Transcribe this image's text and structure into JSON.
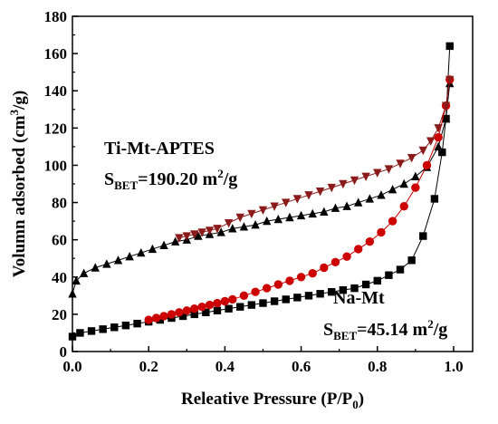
{
  "chart_data": {
    "type": "scatter",
    "xlabel": "Releative Pressure (P/P",
    "xlabel_sub": "0",
    "xlabel_close": ")",
    "ylabel": "Volumn adsorbed (cm",
    "ylabel_sup": "3",
    "ylabel_close": "/g)",
    "xlim": [
      0.0,
      1.05
    ],
    "ylim": [
      0,
      180
    ],
    "xticks": [
      0.0,
      0.2,
      0.4,
      0.6,
      0.8,
      1.0
    ],
    "xtick_labels": [
      "0.0",
      "0.2",
      "0.4",
      "0.6",
      "0.8",
      "1.0"
    ],
    "yticks": [
      0,
      20,
      40,
      60,
      80,
      100,
      120,
      140,
      160,
      180
    ],
    "ytick_labels": [
      "0",
      "20",
      "40",
      "60",
      "80",
      "100",
      "120",
      "140",
      "160",
      "180"
    ],
    "colors": {
      "black": "#000000",
      "red": "#cc0000",
      "brown": "#8b1a1a"
    },
    "annotations": {
      "ti_name": "Ti-Mt-APTES",
      "ti_s": "S",
      "ti_sub": "BET",
      "ti_value": "=190.20 m",
      "ti_sup": "2",
      "ti_unit": "/g",
      "na_name": "Na-Mt",
      "na_s": "S",
      "na_sub": "BET",
      "na_value": "=45.14 m",
      "na_sup": "2",
      "na_unit": "/g"
    },
    "series": [
      {
        "marker": "square",
        "color": "#000000",
        "x": [
          0.0,
          0.02,
          0.05,
          0.08,
          0.11,
          0.14,
          0.17,
          0.2,
          0.23,
          0.26,
          0.29,
          0.32,
          0.35,
          0.38,
          0.41,
          0.44,
          0.47,
          0.5,
          0.53,
          0.56,
          0.59,
          0.62,
          0.65,
          0.68,
          0.71,
          0.74,
          0.77,
          0.8,
          0.83,
          0.86,
          0.89,
          0.92,
          0.95,
          0.97,
          0.98,
          0.99
        ],
        "y": [
          8,
          10,
          11,
          12,
          13,
          14,
          15,
          16,
          17,
          18,
          19,
          20,
          21,
          22,
          23,
          24,
          25,
          26,
          27,
          28,
          29,
          30,
          31,
          32,
          33,
          34,
          36,
          38,
          41,
          44,
          49,
          62,
          82,
          107,
          125,
          164
        ]
      },
      {
        "marker": "triangle-up",
        "color": "#000000",
        "x": [
          0.0,
          0.01,
          0.03,
          0.06,
          0.09,
          0.12,
          0.15,
          0.18,
          0.21,
          0.24,
          0.27,
          0.3,
          0.33,
          0.36,
          0.39,
          0.42,
          0.45,
          0.48,
          0.51,
          0.54,
          0.57,
          0.6,
          0.63,
          0.66,
          0.69,
          0.72,
          0.75,
          0.78,
          0.81,
          0.84,
          0.87,
          0.9,
          0.93,
          0.96,
          0.98,
          0.99
        ],
        "y": [
          31,
          38,
          42,
          45,
          47,
          49,
          51,
          53,
          55,
          57,
          59,
          60,
          62,
          63,
          64,
          66,
          67,
          68,
          70,
          71,
          72,
          73,
          74,
          75,
          77,
          78,
          80,
          82,
          84,
          87,
          90,
          94,
          99,
          110,
          125,
          144
        ]
      },
      {
        "marker": "circle",
        "color": "#cc0000",
        "x": [
          0.99,
          0.98,
          0.96,
          0.93,
          0.9,
          0.87,
          0.84,
          0.81,
          0.78,
          0.75,
          0.72,
          0.69,
          0.66,
          0.63,
          0.6,
          0.57,
          0.54,
          0.51,
          0.48,
          0.45,
          0.42,
          0.4,
          0.38,
          0.36,
          0.34,
          0.32,
          0.3,
          0.28,
          0.26,
          0.24,
          0.22,
          0.2
        ],
        "y": [
          146,
          132,
          115,
          100,
          88,
          78,
          70,
          64,
          59,
          55,
          51,
          48,
          45,
          42,
          40,
          38,
          36,
          34,
          32,
          30,
          28,
          27,
          26,
          25,
          24,
          23,
          22,
          21,
          20,
          19,
          18,
          17
        ]
      },
      {
        "marker": "triangle-down",
        "color": "#8b1a1a",
        "x": [
          0.99,
          0.98,
          0.96,
          0.94,
          0.92,
          0.89,
          0.86,
          0.83,
          0.8,
          0.77,
          0.74,
          0.71,
          0.68,
          0.65,
          0.62,
          0.59,
          0.56,
          0.53,
          0.5,
          0.47,
          0.44,
          0.41,
          0.38,
          0.36,
          0.34,
          0.32,
          0.3,
          0.28
        ],
        "y": [
          146,
          132,
          120,
          113,
          108,
          104,
          101,
          98,
          96,
          94,
          92,
          90,
          88,
          86,
          84,
          82,
          80,
          78,
          76,
          74,
          72,
          69,
          66,
          65,
          64,
          63,
          62,
          61
        ]
      }
    ]
  }
}
